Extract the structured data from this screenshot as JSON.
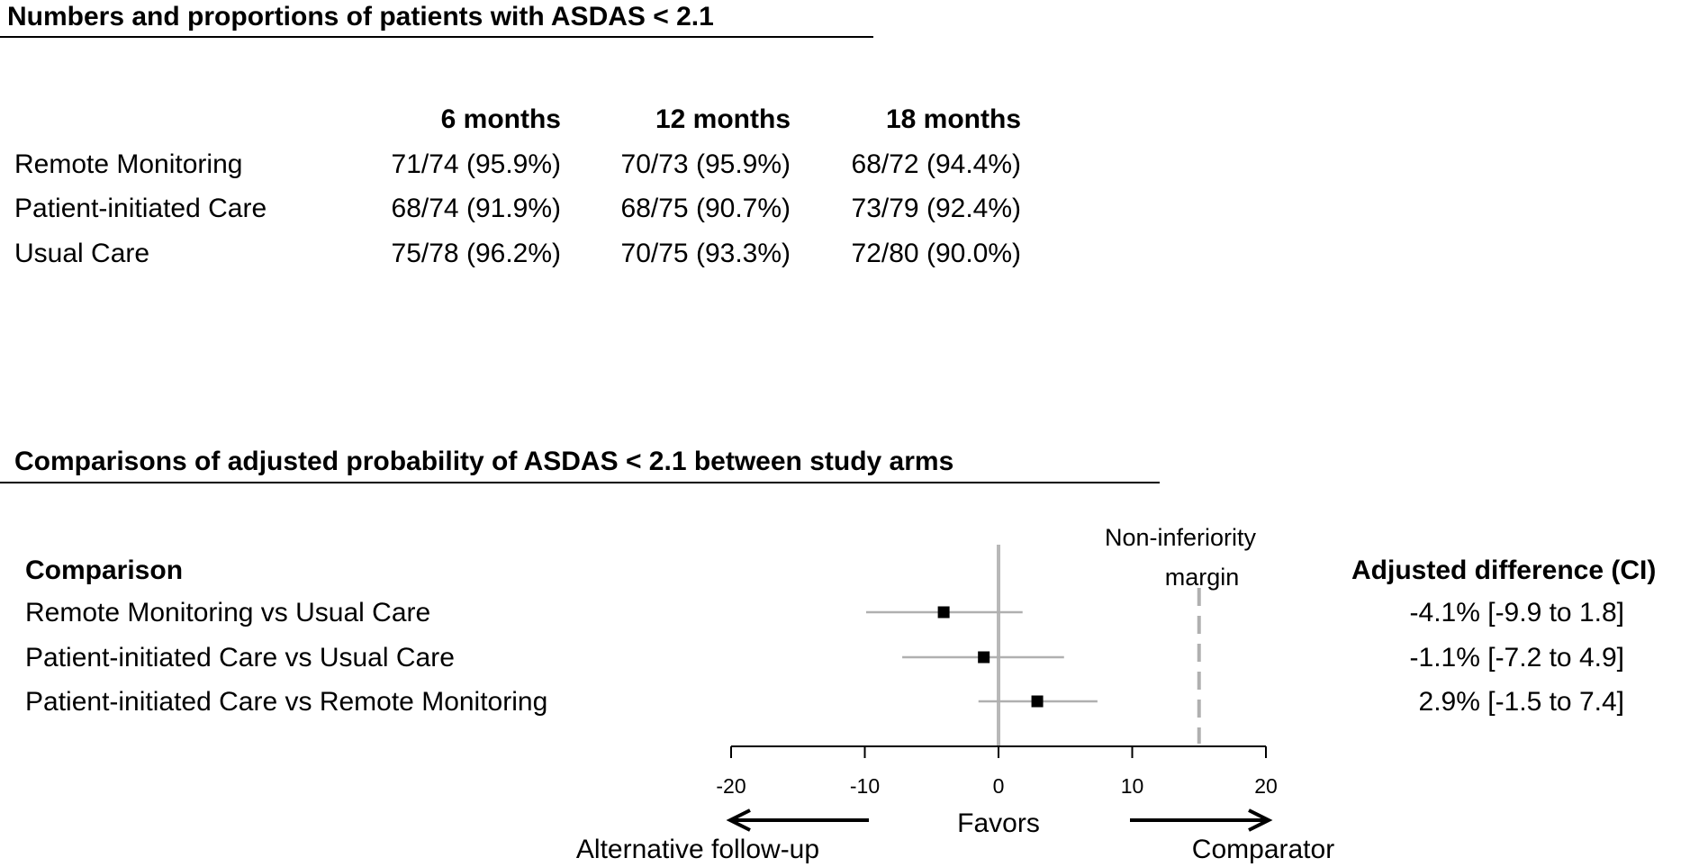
{
  "table": {
    "title": "Numbers and proportions of patients with ASDAS < 2.1",
    "columns": [
      "6 months",
      "12 months",
      "18 months"
    ],
    "rows": [
      {
        "label": "Remote Monitoring",
        "values": [
          "71/74 (95.9%)",
          "70/73 (95.9%)",
          "68/72 (94.4%)"
        ]
      },
      {
        "label": "Patient-initiated Care",
        "values": [
          "68/74 (91.9%)",
          "68/75 (90.7%)",
          "73/79 (92.4%)"
        ]
      },
      {
        "label": "Usual Care",
        "values": [
          "75/78 (96.2%)",
          "70/75 (93.3%)",
          "72/80 (90.0%)"
        ]
      }
    ]
  },
  "forest": {
    "title": "Comparisons of adjusted probability of ASDAS < 2.1 between study arms",
    "comparison_header": "Comparison",
    "difference_header": "Adjusted difference (CI)",
    "margin_label_line1": "Non-inferiority",
    "margin_label_line2": "margin",
    "favors_label": "Favors",
    "left_arrow_label": "Alternative follow-up",
    "right_arrow_label": "Comparator"
  },
  "chart_data": {
    "type": "forest",
    "title": "Comparisons of adjusted probability of ASDAS < 2.1 between study arms",
    "xlim": [
      -20,
      20
    ],
    "xticks": [
      -20,
      -10,
      0,
      10,
      20
    ],
    "reference_line": 0,
    "non_inferiority_margin": 15,
    "colors": {
      "point": "#000000",
      "ci": "#b0b0b0",
      "zero_line": "#b8b8b8",
      "margin_line": "#b0b0b0"
    },
    "rows": [
      {
        "label": "Remote Monitoring vs Usual Care",
        "estimate": -4.1,
        "lower": -9.9,
        "upper": 1.8,
        "text": "-4.1% [-9.9 to 1.8]"
      },
      {
        "label": "Patient-initiated Care vs Usual Care",
        "estimate": -1.1,
        "lower": -7.2,
        "upper": 4.9,
        "text": "-1.1% [-7.2 to 4.9]"
      },
      {
        "label": "Patient-initiated Care vs Remote Monitoring",
        "estimate": 2.9,
        "lower": -1.5,
        "upper": 7.4,
        "text": "2.9% [-1.5 to 7.4]"
      }
    ]
  }
}
